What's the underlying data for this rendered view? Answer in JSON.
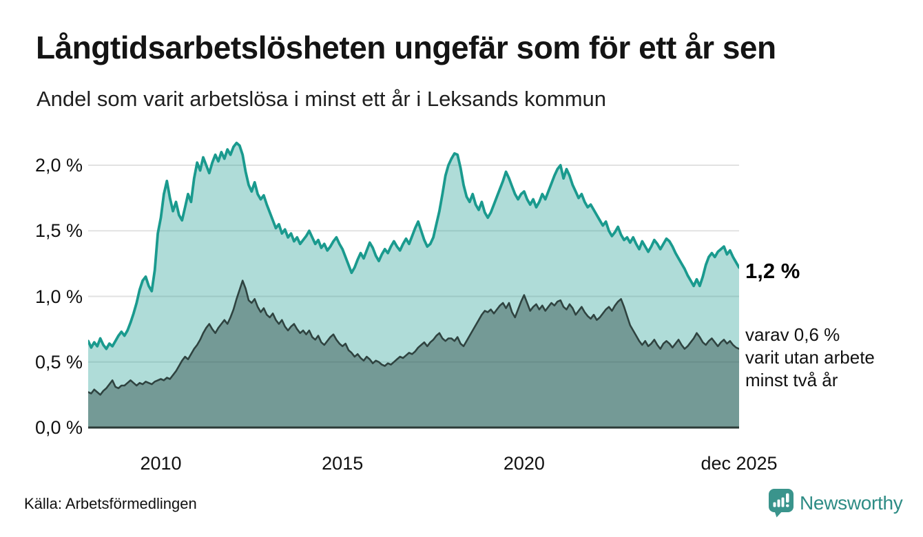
{
  "header": {
    "title": "Långtidsarbetslösheten ungefär som för ett år sen",
    "subtitle": "Andel som varit arbetslösa i minst ett år i Leksands kommun"
  },
  "annotations": {
    "end_label": "1,2 %",
    "secondary_lines": [
      "varav 0,6 %",
      "varit utan arbete",
      "minst två år"
    ]
  },
  "footer": {
    "source": "Källa: Arbetsförmedlingen",
    "brand": "Newsworthy"
  },
  "chart_data": {
    "type": "area",
    "title": "Andel som varit arbetslösa i minst ett år i Leksands kommun",
    "x_interval": "monthly",
    "x_start": "2008-01",
    "x_end": "2025-12",
    "ylim": [
      0,
      2.3
    ],
    "grid": true,
    "y_ticks": [
      {
        "value": 0.0,
        "label": "0,0 %"
      },
      {
        "value": 0.5,
        "label": "0,5 %"
      },
      {
        "value": 1.0,
        "label": "1,0 %"
      },
      {
        "value": 1.5,
        "label": "1,5 %"
      },
      {
        "value": 2.0,
        "label": "2,0 %"
      }
    ],
    "x_ticks": [
      {
        "index": 24,
        "label": "2010"
      },
      {
        "index": 84,
        "label": "2015"
      },
      {
        "index": 144,
        "label": "2020"
      },
      {
        "index": 215,
        "label": "dec 2025"
      }
    ],
    "colors": {
      "series1_stroke": "#1a9a8e",
      "series1_fill": "rgba(26,154,142,0.35)",
      "series2_stroke": "#2f4340",
      "series2_fill": "rgba(35,63,59,0.42)",
      "grid": "#e2e2e2",
      "axis": "#2b3a37",
      "brand_teal": "#3a948c"
    },
    "series": [
      {
        "name": "Andel arbetslösa minst ett år",
        "end_value_label": "1,2 %",
        "values": [
          0.66,
          0.61,
          0.65,
          0.62,
          0.68,
          0.63,
          0.6,
          0.64,
          0.62,
          0.66,
          0.7,
          0.73,
          0.7,
          0.74,
          0.8,
          0.87,
          0.95,
          1.05,
          1.12,
          1.15,
          1.08,
          1.04,
          1.2,
          1.48,
          1.6,
          1.78,
          1.88,
          1.75,
          1.65,
          1.72,
          1.62,
          1.58,
          1.68,
          1.78,
          1.72,
          1.9,
          2.02,
          1.96,
          2.06,
          2.0,
          1.94,
          2.02,
          2.08,
          2.03,
          2.1,
          2.05,
          2.12,
          2.08,
          2.14,
          2.17,
          2.15,
          2.08,
          1.95,
          1.85,
          1.8,
          1.87,
          1.78,
          1.74,
          1.77,
          1.7,
          1.64,
          1.58,
          1.52,
          1.55,
          1.48,
          1.51,
          1.45,
          1.48,
          1.42,
          1.45,
          1.4,
          1.43,
          1.46,
          1.5,
          1.45,
          1.4,
          1.43,
          1.37,
          1.4,
          1.35,
          1.38,
          1.42,
          1.45,
          1.4,
          1.36,
          1.3,
          1.24,
          1.18,
          1.22,
          1.28,
          1.33,
          1.29,
          1.35,
          1.41,
          1.37,
          1.31,
          1.27,
          1.32,
          1.36,
          1.33,
          1.38,
          1.42,
          1.38,
          1.35,
          1.4,
          1.44,
          1.4,
          1.46,
          1.52,
          1.57,
          1.5,
          1.43,
          1.38,
          1.4,
          1.45,
          1.55,
          1.65,
          1.78,
          1.92,
          2.0,
          2.05,
          2.09,
          2.08,
          1.98,
          1.85,
          1.76,
          1.72,
          1.78,
          1.7,
          1.66,
          1.72,
          1.64,
          1.6,
          1.64,
          1.7,
          1.76,
          1.82,
          1.88,
          1.95,
          1.9,
          1.84,
          1.78,
          1.74,
          1.78,
          1.8,
          1.74,
          1.7,
          1.74,
          1.68,
          1.72,
          1.78,
          1.74,
          1.8,
          1.86,
          1.92,
          1.97,
          2.0,
          1.9,
          1.97,
          1.92,
          1.85,
          1.8,
          1.75,
          1.78,
          1.72,
          1.68,
          1.7,
          1.66,
          1.62,
          1.58,
          1.54,
          1.57,
          1.5,
          1.46,
          1.49,
          1.53,
          1.47,
          1.43,
          1.45,
          1.41,
          1.45,
          1.4,
          1.36,
          1.42,
          1.38,
          1.34,
          1.38,
          1.43,
          1.4,
          1.36,
          1.4,
          1.44,
          1.42,
          1.38,
          1.33,
          1.29,
          1.25,
          1.21,
          1.16,
          1.12,
          1.08,
          1.13,
          1.08,
          1.15,
          1.24,
          1.3,
          1.33,
          1.3,
          1.34,
          1.36,
          1.38,
          1.32,
          1.35,
          1.3,
          1.26,
          1.22
        ]
      },
      {
        "name": "varav utan arbete minst två år",
        "end_value_label": "0,6 %",
        "values": [
          0.27,
          0.26,
          0.29,
          0.27,
          0.25,
          0.28,
          0.3,
          0.33,
          0.36,
          0.31,
          0.3,
          0.32,
          0.32,
          0.34,
          0.36,
          0.34,
          0.32,
          0.34,
          0.33,
          0.35,
          0.34,
          0.33,
          0.35,
          0.36,
          0.37,
          0.36,
          0.38,
          0.37,
          0.4,
          0.43,
          0.47,
          0.51,
          0.54,
          0.52,
          0.56,
          0.6,
          0.63,
          0.67,
          0.72,
          0.76,
          0.79,
          0.75,
          0.72,
          0.76,
          0.79,
          0.82,
          0.79,
          0.84,
          0.9,
          0.98,
          1.05,
          1.12,
          1.06,
          0.97,
          0.95,
          0.98,
          0.92,
          0.88,
          0.91,
          0.86,
          0.84,
          0.87,
          0.82,
          0.79,
          0.82,
          0.77,
          0.74,
          0.77,
          0.79,
          0.75,
          0.72,
          0.74,
          0.71,
          0.74,
          0.69,
          0.67,
          0.7,
          0.65,
          0.63,
          0.66,
          0.69,
          0.71,
          0.67,
          0.64,
          0.62,
          0.64,
          0.59,
          0.57,
          0.54,
          0.56,
          0.53,
          0.51,
          0.54,
          0.52,
          0.49,
          0.51,
          0.5,
          0.48,
          0.47,
          0.49,
          0.48,
          0.5,
          0.52,
          0.54,
          0.53,
          0.55,
          0.57,
          0.56,
          0.58,
          0.61,
          0.63,
          0.65,
          0.62,
          0.65,
          0.67,
          0.7,
          0.72,
          0.68,
          0.66,
          0.68,
          0.68,
          0.66,
          0.69,
          0.64,
          0.62,
          0.66,
          0.7,
          0.74,
          0.78,
          0.82,
          0.86,
          0.89,
          0.88,
          0.9,
          0.87,
          0.9,
          0.93,
          0.95,
          0.91,
          0.95,
          0.88,
          0.84,
          0.9,
          0.96,
          1.01,
          0.95,
          0.89,
          0.92,
          0.94,
          0.9,
          0.93,
          0.89,
          0.92,
          0.95,
          0.93,
          0.96,
          0.97,
          0.92,
          0.9,
          0.94,
          0.91,
          0.86,
          0.89,
          0.92,
          0.88,
          0.85,
          0.83,
          0.86,
          0.82,
          0.84,
          0.87,
          0.9,
          0.92,
          0.89,
          0.93,
          0.96,
          0.98,
          0.92,
          0.85,
          0.78,
          0.74,
          0.7,
          0.66,
          0.63,
          0.66,
          0.62,
          0.64,
          0.67,
          0.63,
          0.6,
          0.64,
          0.66,
          0.64,
          0.61,
          0.64,
          0.67,
          0.63,
          0.6,
          0.62,
          0.65,
          0.68,
          0.72,
          0.69,
          0.65,
          0.63,
          0.66,
          0.68,
          0.65,
          0.62,
          0.65,
          0.67,
          0.64,
          0.66,
          0.63,
          0.61,
          0.6
        ]
      }
    ]
  }
}
